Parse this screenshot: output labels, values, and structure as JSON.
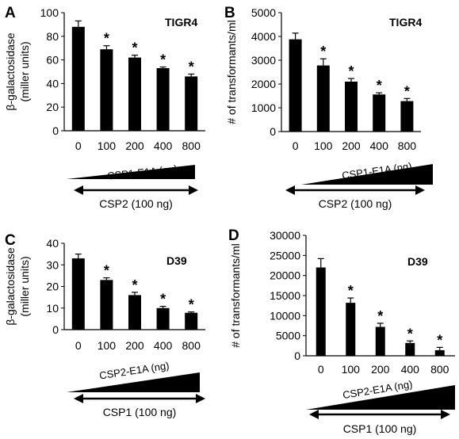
{
  "chart_data": [
    {
      "id": "A",
      "type": "bar",
      "title": "TIGR4",
      "ylabel": [
        "β-galactosidase",
        "(miller units)"
      ],
      "ylim": [
        0,
        100
      ],
      "yticks": [
        0,
        20,
        40,
        60,
        80,
        100
      ],
      "categories": [
        "0",
        "100",
        "200",
        "400",
        "800"
      ],
      "values": [
        88,
        69,
        62,
        53,
        46
      ],
      "errors": [
        5,
        3,
        2,
        1,
        2
      ],
      "significance": [
        "",
        "*",
        "*",
        "*",
        "*"
      ],
      "gradient_label": "CSP1-E1A (ng)",
      "arrow_label": "CSP2 (100 ng)",
      "grid": false
    },
    {
      "id": "B",
      "type": "bar",
      "title": "TIGR4",
      "ylabel": [
        "# of transformants/ml"
      ],
      "ylim": [
        0,
        5000
      ],
      "yticks": [
        0,
        1000,
        2000,
        3000,
        4000,
        5000
      ],
      "categories": [
        "0",
        "100",
        "200",
        "400",
        "800"
      ],
      "values": [
        3880,
        2780,
        2100,
        1560,
        1280
      ],
      "errors": [
        260,
        280,
        130,
        70,
        110
      ],
      "significance": [
        "",
        "*",
        "*",
        "*",
        "*"
      ],
      "gradient_label": "CSP1-E1A (ng)",
      "arrow_label": "CSP2 (100 ng)",
      "grid": false
    },
    {
      "id": "C",
      "type": "bar",
      "title": "D39",
      "ylabel": [
        "β-galactosidase",
        "(miller units)"
      ],
      "ylim": [
        0,
        40
      ],
      "yticks": [
        0,
        10,
        20,
        30,
        40
      ],
      "categories": [
        "0",
        "100",
        "200",
        "400",
        "800"
      ],
      "values": [
        33,
        23,
        16,
        10,
        7.8
      ],
      "errors": [
        2,
        1,
        1.3,
        0.8,
        0.4
      ],
      "significance": [
        "",
        "*",
        "*",
        "*",
        "*"
      ],
      "gradient_label": "CSP2-E1A (ng)",
      "arrow_label": "CSP1 (100 ng)",
      "grid": false
    },
    {
      "id": "D",
      "type": "bar",
      "title": "D39",
      "ylabel": [
        "# of transformants/ml"
      ],
      "ylim": [
        0,
        30000
      ],
      "yticks": [
        0,
        5000,
        10000,
        15000,
        20000,
        25000,
        30000
      ],
      "categories": [
        "0",
        "100",
        "200",
        "400",
        "800"
      ],
      "values": [
        22000,
        13200,
        7200,
        3200,
        1400
      ],
      "errors": [
        2200,
        1200,
        900,
        500,
        700
      ],
      "significance": [
        "",
        "*",
        "*",
        "*",
        "*"
      ],
      "gradient_label": "CSP2-E1A (ng)",
      "arrow_label": "CSP1 (100 ng)",
      "grid": false
    }
  ]
}
